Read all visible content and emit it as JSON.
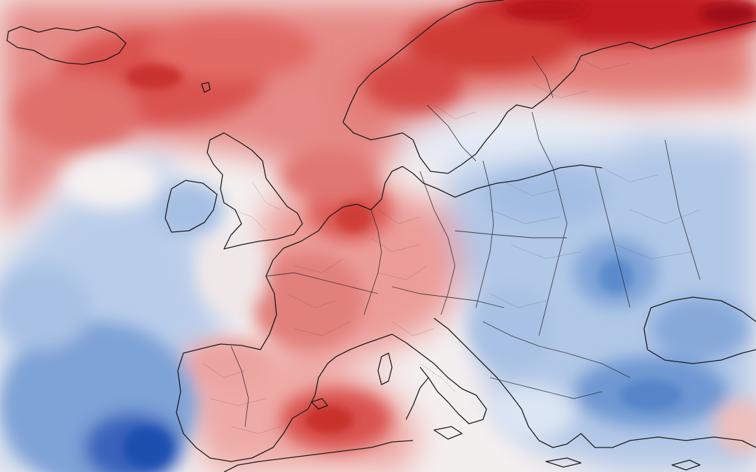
{
  "map": {
    "type": "temperature-anomaly-heatmap",
    "region": "Europe",
    "colors": {
      "warm_extreme": "#b5121b",
      "warm_strong": "#d6504b",
      "warm_moderate": "#e88a86",
      "warm_light": "#f5c6c3",
      "neutral": "#f4f1f1",
      "cool_light": "#c9d9ee",
      "cool_moderate": "#98b8e0",
      "cool_strong": "#5b8ccd",
      "cool_extreme": "#1f4fb0",
      "coastline": "#1a1a1a"
    },
    "has_legend": false,
    "has_title": false
  }
}
